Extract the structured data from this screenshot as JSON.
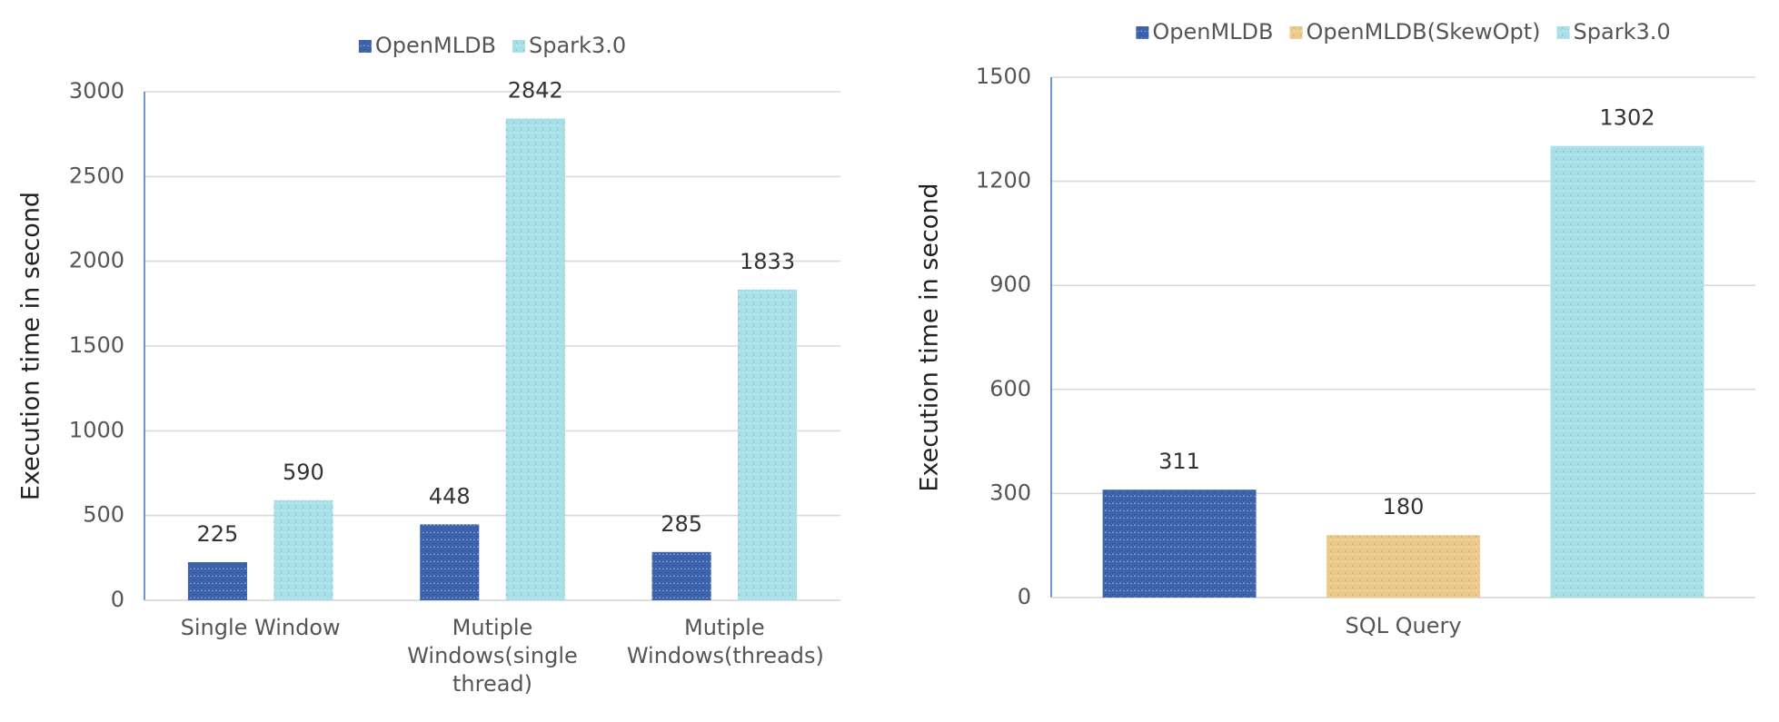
{
  "chart_data": [
    {
      "type": "bar",
      "y_label": "Execution time in second",
      "categories": [
        "Single Window",
        "Mutiple Windows(single thread)",
        "Mutiple Windows(threads)"
      ],
      "series": [
        {
          "name": "OpenMLDB",
          "color": "#3d63ad",
          "values": [
            225,
            448,
            285
          ]
        },
        {
          "name": "Spark3.0",
          "color": "#a6dfe8",
          "values": [
            590,
            2842,
            1833
          ]
        }
      ],
      "ylim": [
        0,
        3000
      ],
      "yticks": [
        0,
        500,
        1000,
        1500,
        2000,
        2500,
        3000
      ],
      "grid": true,
      "legend": "top"
    },
    {
      "type": "bar",
      "y_label": "Execution time in second",
      "categories": [
        "SQL Query"
      ],
      "series": [
        {
          "name": "OpenMLDB",
          "color": "#3d63ad",
          "values": [
            311
          ]
        },
        {
          "name": "OpenMLDB(SkewOpt)",
          "color": "#ecca8c",
          "values": [
            180
          ]
        },
        {
          "name": "Spark3.0",
          "color": "#a6dfe8",
          "values": [
            1302
          ]
        }
      ],
      "ylim": [
        0,
        1500
      ],
      "yticks": [
        0,
        300,
        600,
        900,
        1200,
        1500
      ],
      "grid": true,
      "legend": "top"
    }
  ]
}
